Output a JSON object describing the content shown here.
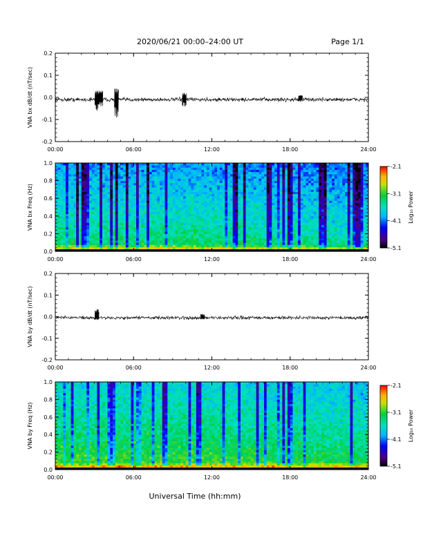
{
  "header": {
    "title": "2020/06/21  00:00–24:00 UT",
    "page": "Page 1/1"
  },
  "footer": {
    "xlabel": "Universal Time (hh:mm)"
  },
  "colorbar": {
    "label": "Log₁₀ Power",
    "ticks": [
      "-2.1",
      "-3.1",
      "-4.1",
      "-5.1"
    ],
    "range": [
      -5.1,
      -2.1
    ]
  },
  "chart_data": [
    {
      "type": "line",
      "ylabel": "VNA bx dB/dt (nT/sec)",
      "xlim": [
        0,
        24
      ],
      "ylim": [
        -0.2,
        0.2
      ],
      "xticks": [
        "00:00",
        "06:00",
        "12:00",
        "18:00",
        "24:00"
      ],
      "yticks": [
        "0.2",
        "0.1",
        "0.0",
        "-0.1",
        "-0.2"
      ],
      "baseline": -0.01,
      "noise_amplitude": 0.008,
      "events": [
        {
          "x": 3.2,
          "y_min": -0.06,
          "y_max": 0.03
        },
        {
          "x": 3.5,
          "y_min": -0.04,
          "y_max": 0.03
        },
        {
          "x": 4.7,
          "y_min": -0.09,
          "y_max": 0.04
        },
        {
          "x": 9.9,
          "y_min": -0.04,
          "y_max": 0.02
        },
        {
          "x": 18.8,
          "y_min": -0.02,
          "y_max": 0.01
        }
      ]
    },
    {
      "type": "heatmap",
      "ylabel": "VNA bx Freq (Hz)",
      "xlim": [
        0,
        24
      ],
      "ylim": [
        0,
        1.0
      ],
      "xticks": [
        "00:00",
        "06:00",
        "12:00",
        "18:00",
        "24:00"
      ],
      "yticks": [
        "1.0",
        "0.8",
        "0.6",
        "0.4",
        "0.2",
        "0.0"
      ],
      "colorbar_range": [
        -5.1,
        -2.1
      ],
      "dominant_power_low_freq": -3.1,
      "dominant_power_high_freq": -4.0
    },
    {
      "type": "line",
      "ylabel": "VNA by dB/dt (nT/sec)",
      "xlim": [
        0,
        24
      ],
      "ylim": [
        -0.2,
        0.2
      ],
      "xticks": [
        "00:00",
        "06:00",
        "12:00",
        "18:00",
        "24:00"
      ],
      "yticks": [
        "0.2",
        "0.1",
        "0.0",
        "-0.1",
        "-0.2"
      ],
      "baseline": -0.005,
      "noise_amplitude": 0.007,
      "events": [
        {
          "x": 3.2,
          "y_min": -0.015,
          "y_max": 0.035
        },
        {
          "x": 11.3,
          "y_min": -0.012,
          "y_max": 0.012
        }
      ]
    },
    {
      "type": "heatmap",
      "ylabel": "VNA by Freq (Hz)",
      "xlim": [
        0,
        24
      ],
      "ylim": [
        0,
        1.0
      ],
      "xticks": [
        "00:00",
        "06:00",
        "12:00",
        "18:00",
        "24:00"
      ],
      "yticks": [
        "1.0",
        "0.8",
        "0.6",
        "0.4",
        "0.2",
        "0.0"
      ],
      "colorbar_range": [
        -5.1,
        -2.1
      ],
      "dominant_power_low_freq": -2.9,
      "dominant_power_high_freq": -3.7
    }
  ]
}
